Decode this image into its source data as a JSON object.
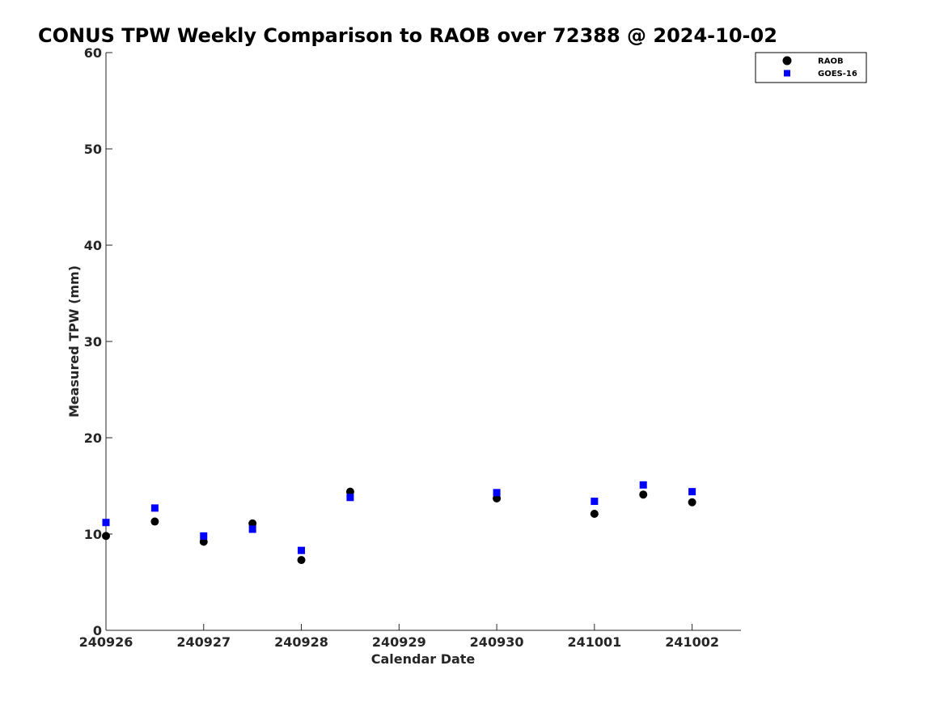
{
  "chart_data": {
    "type": "scatter",
    "title": "CONUS TPW Weekly Comparison to RAOB over 72388 @ 2024-10-02",
    "xlabel": "Calendar Date",
    "ylabel": "Measured TPW (mm)",
    "x_tick_labels": [
      "240926",
      "240927",
      "240928",
      "240929",
      "240930",
      "241001",
      "241002"
    ],
    "x_tick_positions": [
      0,
      1,
      2,
      3,
      4,
      5,
      6
    ],
    "xlim": [
      0,
      6.5
    ],
    "ylim": [
      0,
      60
    ],
    "y_ticks": [
      0,
      10,
      20,
      30,
      40,
      50,
      60
    ],
    "grid": false,
    "legend_position": "top-right",
    "series": [
      {
        "name": "RAOB",
        "marker": "circle",
        "color": "#000000",
        "x": [
          0,
          0.5,
          1,
          1.5,
          2,
          2.5,
          4,
          5,
          5.5,
          6
        ],
        "y": [
          9.8,
          11.3,
          9.2,
          11.1,
          7.3,
          14.4,
          13.7,
          12.1,
          14.1,
          13.3
        ]
      },
      {
        "name": "GOES-16",
        "marker": "square",
        "color": "#0000ff",
        "x": [
          0,
          0.5,
          1,
          1.5,
          2,
          2.5,
          4,
          5,
          5.5,
          6
        ],
        "y": [
          11.2,
          12.7,
          9.8,
          10.5,
          8.3,
          13.8,
          14.3,
          13.4,
          15.1,
          14.4
        ]
      }
    ]
  }
}
